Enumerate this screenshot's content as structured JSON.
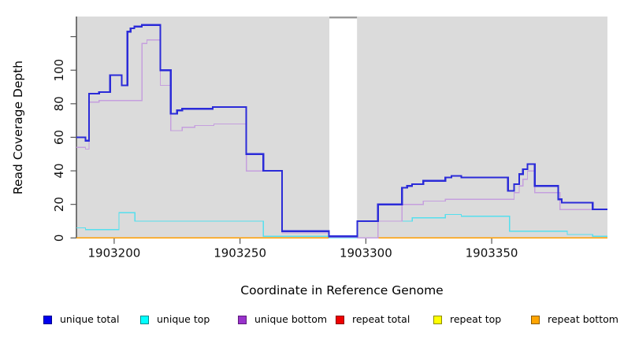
{
  "figure": {
    "x_axis_title": "Coordinate in Reference Genome",
    "y_axis_title": "Read Coverage Depth"
  },
  "legend": {
    "items": [
      {
        "label": "unique total",
        "fill": "#0000EE",
        "border": "#00008B"
      },
      {
        "label": "unique top",
        "fill": "#00FFFF",
        "border": "#008B8B"
      },
      {
        "label": "unique bottom",
        "fill": "#9932CC",
        "border": "#5D1A7A"
      },
      {
        "label": "repeat total",
        "fill": "#EE0000",
        "border": "#8B0000"
      },
      {
        "label": "repeat top",
        "fill": "#FFFF00",
        "border": "#8B8B00"
      },
      {
        "label": "repeat bottom",
        "fill": "#FFA500",
        "border": "#8B5A00"
      }
    ]
  },
  "chart_data": {
    "type": "line",
    "subtype": "step-coverage",
    "title": "",
    "xlabel": "Coordinate in Reference Genome",
    "ylabel": "Read Coverage Depth",
    "xlim": [
      1903185,
      1903396
    ],
    "ylim": [
      0,
      132
    ],
    "plot_bg": "#DBDBDB",
    "grid": "off",
    "legend_position": "bottom",
    "x_ticks": [
      {
        "value": 1903200,
        "label": "1903200"
      },
      {
        "value": 1903250,
        "label": "1903250"
      },
      {
        "value": 1903300,
        "label": "1903300"
      },
      {
        "value": 1903350,
        "label": "1903350"
      }
    ],
    "y_ticks": [
      {
        "value": 0,
        "label": "0"
      },
      {
        "value": 20,
        "label": "20"
      },
      {
        "value": 40,
        "label": "40"
      },
      {
        "value": 60,
        "label": "60"
      },
      {
        "value": 80,
        "label": "80"
      },
      {
        "value": 100,
        "label": "100"
      },
      {
        "value": 120,
        "label": ""
      }
    ],
    "gap_region": {
      "start": 1903285.5,
      "end": 1903296.5,
      "fill": "#FFFFFF",
      "top_line_color": "#999999"
    },
    "series": [
      {
        "name": "repeat total",
        "color": "#EE0000",
        "width": 1,
        "points": [
          [
            1903185,
            0
          ]
        ]
      },
      {
        "name": "repeat top",
        "color": "#FFFF00",
        "width": 1,
        "points": [
          [
            1903185,
            0
          ]
        ]
      },
      {
        "name": "repeat bottom",
        "color": "#FF9E00",
        "width": 1.8,
        "points": [
          [
            1903185,
            0
          ]
        ]
      },
      {
        "name": "unique top",
        "color": "#55DFEE",
        "width": 1.3,
        "points": [
          [
            1903185,
            6
          ],
          [
            1903188.6,
            5
          ],
          [
            1903201.9,
            15
          ],
          [
            1903208.2,
            10
          ],
          [
            1903259.3,
            1
          ],
          [
            1903285.3,
            0
          ],
          [
            1903296.6,
            10
          ],
          [
            1903318.4,
            12
          ],
          [
            1903331.6,
            14
          ],
          [
            1903337.9,
            13
          ],
          [
            1903357.1,
            4
          ],
          [
            1903380,
            2
          ],
          [
            1903390.1,
            1
          ]
        ]
      },
      {
        "name": "unique bottom",
        "color": "#C59FDE",
        "width": 1.3,
        "points": [
          [
            1903185,
            54
          ],
          [
            1903188.6,
            53
          ],
          [
            1903190,
            81
          ],
          [
            1903194,
            82
          ],
          [
            1903211,
            116
          ],
          [
            1903213,
            118
          ],
          [
            1903218.3,
            91
          ],
          [
            1903222.5,
            64
          ],
          [
            1903227,
            66
          ],
          [
            1903232,
            67
          ],
          [
            1903239.6,
            68
          ],
          [
            1903252.5,
            40
          ],
          [
            1903266.7,
            3
          ],
          [
            1903285.3,
            0.5
          ],
          [
            1903296.6,
            0
          ],
          [
            1903304.8,
            10
          ],
          [
            1903314.4,
            20
          ],
          [
            1903322.8,
            22
          ],
          [
            1903331.6,
            23
          ],
          [
            1903358.9,
            27
          ],
          [
            1903360.9,
            31
          ],
          [
            1903362.4,
            35
          ],
          [
            1903364.2,
            40
          ],
          [
            1903367.1,
            27
          ],
          [
            1903377.1,
            17
          ]
        ]
      },
      {
        "name": "unique total",
        "color": "#2B2BD8",
        "width": 2.2,
        "points": [
          [
            1903185,
            60
          ],
          [
            1903188.6,
            58
          ],
          [
            1903190,
            86
          ],
          [
            1903194,
            87
          ],
          [
            1903198.4,
            97
          ],
          [
            1903203,
            91
          ],
          [
            1903205.3,
            123
          ],
          [
            1903206.5,
            125
          ],
          [
            1903208,
            126
          ],
          [
            1903211,
            127
          ],
          [
            1903218.3,
            100
          ],
          [
            1903222.5,
            74
          ],
          [
            1903225,
            76
          ],
          [
            1903227,
            77
          ],
          [
            1903239.2,
            78
          ],
          [
            1903252.5,
            50
          ],
          [
            1903259.3,
            40
          ],
          [
            1903266.7,
            4
          ],
          [
            1903285.3,
            1
          ],
          [
            1903296.6,
            10
          ],
          [
            1903304.8,
            20
          ],
          [
            1903314.4,
            30
          ],
          [
            1903316.4,
            31
          ],
          [
            1903318.4,
            32
          ],
          [
            1903322.8,
            34
          ],
          [
            1903331.6,
            36
          ],
          [
            1903334,
            37
          ],
          [
            1903337.9,
            36
          ],
          [
            1903356.5,
            28
          ],
          [
            1903358.9,
            32
          ],
          [
            1903360.9,
            38
          ],
          [
            1903362.4,
            41
          ],
          [
            1903364.2,
            44
          ],
          [
            1903367.1,
            31
          ],
          [
            1903376.4,
            23
          ],
          [
            1903377.8,
            21
          ],
          [
            1903390.1,
            17
          ]
        ]
      }
    ]
  }
}
